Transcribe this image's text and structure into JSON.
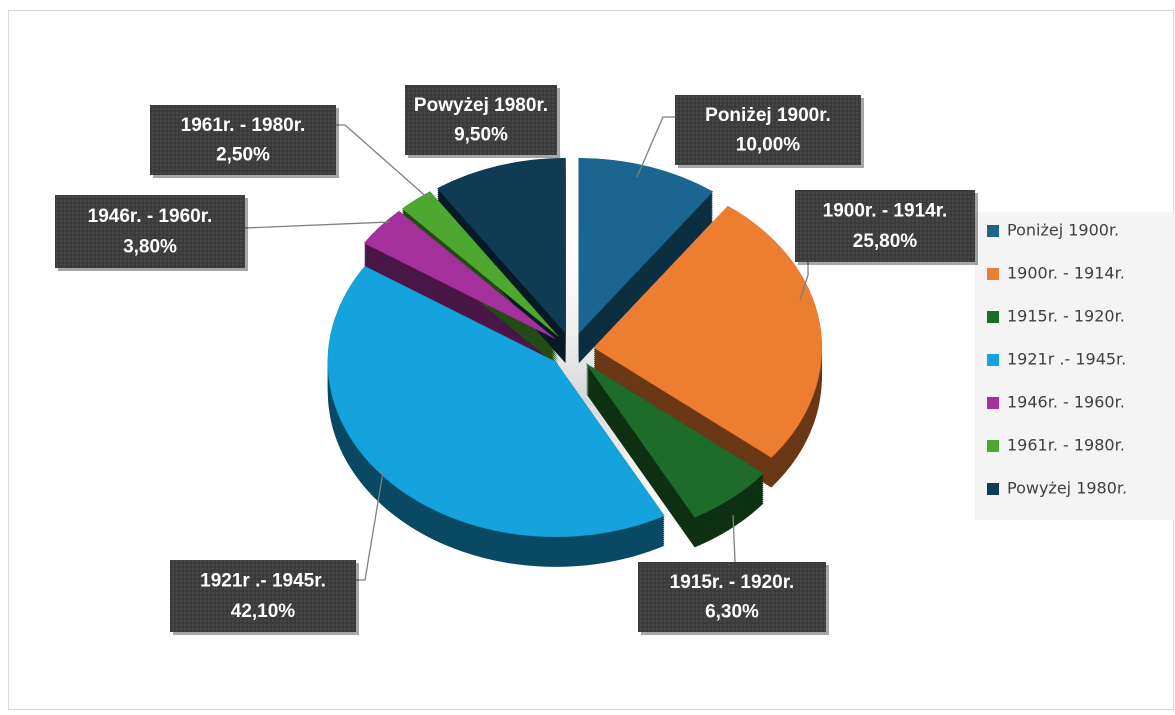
{
  "chart_data": {
    "type": "pie",
    "categories": [
      "Poniżej 1900r.",
      "1900r. - 1914r.",
      "1915r. - 1920r.",
      "1921r .- 1945r.",
      "1946r. - 1960r.",
      "1961r. - 1980r.",
      "Powyżej 1980r."
    ],
    "values": [
      10.0,
      25.8,
      6.3,
      42.1,
      3.8,
      2.5,
      9.5
    ],
    "value_labels": [
      "10,00%",
      "25,80%",
      "6,30%",
      "42,10%",
      "3,80%",
      "2,50%",
      "9,50%"
    ],
    "colors": [
      "#1b6690",
      "#ed7d31",
      "#1e6b2a",
      "#14a3dc",
      "#a3309b",
      "#4ea72e",
      "#0f3b54"
    ],
    "legend": "right"
  }
}
